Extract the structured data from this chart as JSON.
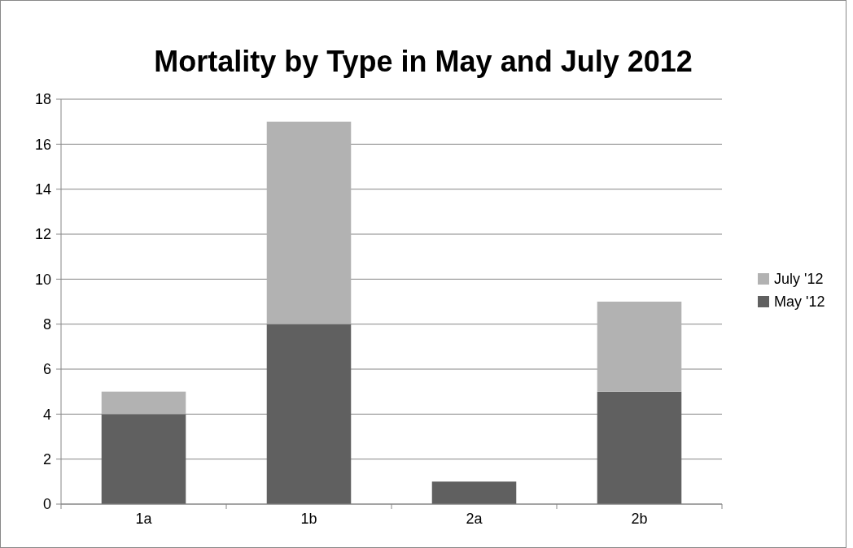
{
  "chart_data": {
    "type": "bar",
    "title": "Mortality by Type in May and July 2012",
    "categories": [
      "1a",
      "1b",
      "2a",
      "2b"
    ],
    "stacked": true,
    "series": [
      {
        "name": "May '12",
        "color": "#606060",
        "values": [
          4,
          8,
          1,
          5
        ]
      },
      {
        "name": "July '12",
        "color": "#b2b2b2",
        "values": [
          1,
          9,
          0,
          4
        ]
      }
    ],
    "ylim": [
      0,
      18
    ],
    "yticks": [
      0,
      2,
      4,
      6,
      8,
      10,
      12,
      14,
      16,
      18
    ],
    "grid": "y",
    "legend": "right"
  }
}
